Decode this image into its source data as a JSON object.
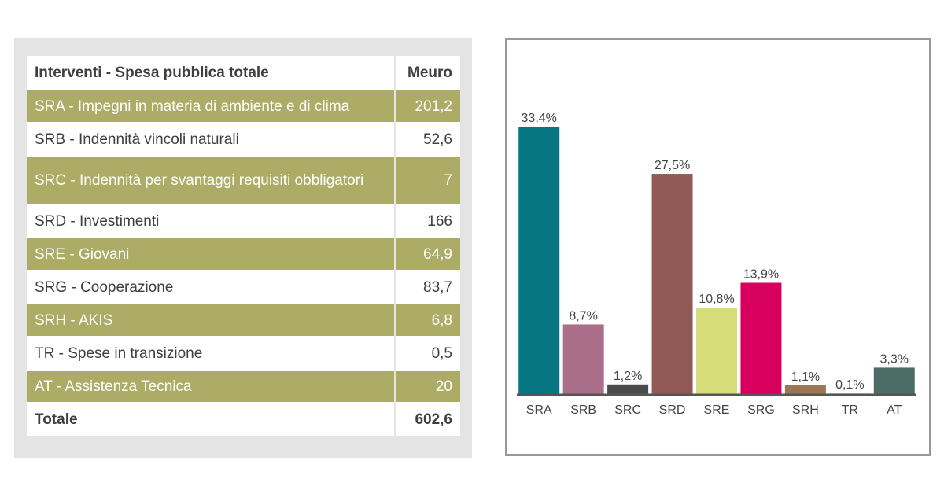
{
  "table": {
    "header": {
      "label": "Interventi - Spesa pubblica totale",
      "unit": "Meuro"
    },
    "rows": [
      {
        "label": "SRA - Impegni in materia di ambiente e di clima",
        "value": "201,2",
        "shaded": true
      },
      {
        "label": "SRB - Indennità vincoli naturali",
        "value": "52,6",
        "shaded": false
      },
      {
        "label": "SRC - Indennità per svantaggi requisiti obbligatori",
        "value": "7",
        "shaded": true
      },
      {
        "label": "SRD - Investimenti",
        "value": "166",
        "shaded": false
      },
      {
        "label": "SRE - Giovani",
        "value": "64,9",
        "shaded": true
      },
      {
        "label": "SRG - Cooperazione",
        "value": "83,7",
        "shaded": false
      },
      {
        "label": "SRH - AKIS",
        "value": "6,8",
        "shaded": true
      },
      {
        "label": "TR - Spese in transizione",
        "value": "0,5",
        "shaded": false
      },
      {
        "label": "AT - Assistenza Tecnica",
        "value": "20",
        "shaded": true
      }
    ],
    "total": {
      "label": "Totale",
      "value": "602,6"
    }
  },
  "chart_data": {
    "type": "bar",
    "title": "",
    "xlabel": "",
    "ylabel": "",
    "categories": [
      "SRA",
      "SRB",
      "SRC",
      "SRD",
      "SRE",
      "SRG",
      "SRH",
      "TR",
      "AT"
    ],
    "values": [
      33.4,
      8.7,
      1.2,
      27.5,
      10.8,
      13.9,
      1.1,
      0.1,
      3.3
    ],
    "value_labels": [
      "33,4%",
      "8,7%",
      "1,2%",
      "27,5%",
      "10,8%",
      "13,9%",
      "1,1%",
      "0,1%",
      "3,3%"
    ],
    "colors": [
      "#067683",
      "#a96f8a",
      "#4a4a4a",
      "#925a56",
      "#d7dc7a",
      "#d8005f",
      "#9b7654",
      "#d8d8d8",
      "#4c6d66"
    ],
    "ylim": [
      0,
      33.4
    ],
    "grid": false,
    "legend": "none"
  }
}
